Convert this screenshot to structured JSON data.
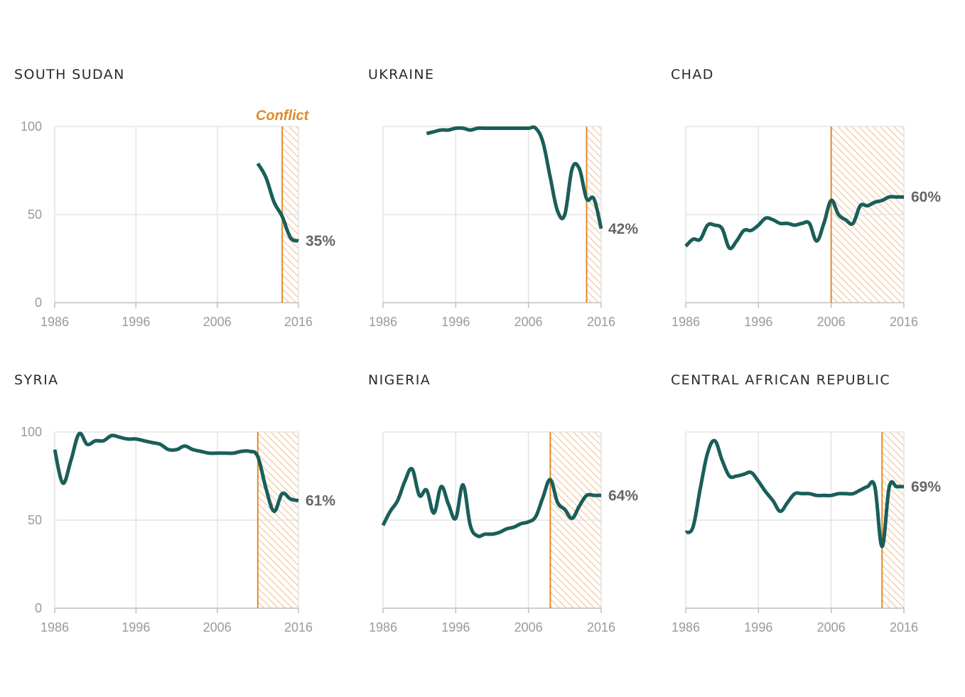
{
  "colors": {
    "line": "#1a5e5a",
    "conflict": "#e08a2c",
    "hatch": "#f2b98a",
    "grid": "#e3e3e3",
    "tick": "#9a9a9a",
    "endlabel": "#666666"
  },
  "conflict_label": "Conflict",
  "chart_data": [
    {
      "type": "line",
      "title": "SOUTH SUDAN",
      "xlim": [
        1986,
        2016
      ],
      "ylim": [
        0,
        100
      ],
      "x_ticks": [
        "1986",
        "1996",
        "2006",
        "2016"
      ],
      "y_ticks": [
        "100",
        "50",
        "0"
      ],
      "conflict_start": 2014,
      "end_label": "35%",
      "series": [
        {
          "x": [
            2011,
            2012,
            2013,
            2014,
            2015,
            2016
          ],
          "y": [
            79,
            71,
            57,
            49,
            37,
            35
          ]
        }
      ]
    },
    {
      "type": "line",
      "title": "UKRAINE",
      "xlim": [
        1986,
        2016
      ],
      "ylim": [
        0,
        100
      ],
      "x_ticks": [
        "1986",
        "1996",
        "2006",
        "2016"
      ],
      "conflict_start": 2014,
      "end_label": "42%",
      "series": [
        {
          "x": [
            1992,
            1993,
            1994,
            1995,
            1996,
            1997,
            1998,
            1999,
            2000,
            2001,
            2002,
            2003,
            2004,
            2005,
            2006,
            2007,
            2008,
            2009,
            2010,
            2011,
            2012,
            2013,
            2014,
            2015,
            2016
          ],
          "y": [
            96,
            97,
            98,
            98,
            99,
            99,
            98,
            99,
            99,
            99,
            99,
            99,
            99,
            99,
            99,
            99,
            91,
            71,
            52,
            50,
            76,
            76,
            59,
            59,
            42
          ]
        }
      ]
    },
    {
      "type": "line",
      "title": "CHAD",
      "xlim": [
        1986,
        2016
      ],
      "ylim": [
        0,
        100
      ],
      "x_ticks": [
        "1986",
        "1996",
        "2006",
        "2016"
      ],
      "conflict_start": 2006,
      "end_label": "60%",
      "series": [
        {
          "x": [
            1986,
            1987,
            1988,
            1989,
            1990,
            1991,
            1992,
            1993,
            1994,
            1995,
            1996,
            1997,
            1998,
            1999,
            2000,
            2001,
            2002,
            2003,
            2004,
            2005,
            2006,
            2007,
            2008,
            2009,
            2010,
            2011,
            2012,
            2013,
            2014,
            2015,
            2016
          ],
          "y": [
            32,
            36,
            36,
            44,
            44,
            42,
            31,
            35,
            41,
            41,
            44,
            48,
            47,
            45,
            45,
            44,
            45,
            45,
            35,
            45,
            58,
            50,
            47,
            45,
            55,
            55,
            57,
            58,
            60,
            60,
            60
          ]
        }
      ]
    },
    {
      "type": "line",
      "title": "SYRIA",
      "xlim": [
        1986,
        2016
      ],
      "ylim": [
        0,
        100
      ],
      "x_ticks": [
        "1986",
        "1996",
        "2006",
        "2016"
      ],
      "y_ticks": [
        "100",
        "50",
        "0"
      ],
      "conflict_start": 2011,
      "end_label": "61%",
      "series": [
        {
          "x": [
            1986,
            1987,
            1988,
            1989,
            1990,
            1991,
            1992,
            1993,
            1994,
            1995,
            1996,
            1997,
            1998,
            1999,
            2000,
            2001,
            2002,
            2003,
            2004,
            2005,
            2006,
            2007,
            2008,
            2009,
            2010,
            2011,
            2012,
            2013,
            2014,
            2015,
            2016
          ],
          "y": [
            90,
            71,
            84,
            99,
            93,
            95,
            95,
            98,
            97,
            96,
            96,
            95,
            94,
            93,
            90,
            90,
            92,
            90,
            89,
            88,
            88,
            88,
            88,
            89,
            89,
            86,
            68,
            55,
            65,
            62,
            61
          ]
        }
      ]
    },
    {
      "type": "line",
      "title": "NIGERIA",
      "xlim": [
        1986,
        2016
      ],
      "ylim": [
        0,
        100
      ],
      "x_ticks": [
        "1986",
        "1996",
        "2006",
        "2016"
      ],
      "conflict_start": 2009,
      "end_label": "64%",
      "series": [
        {
          "x": [
            1986,
            1987,
            1988,
            1989,
            1990,
            1991,
            1992,
            1993,
            1994,
            1995,
            1996,
            1997,
            1998,
            1999,
            2000,
            2001,
            2002,
            2003,
            2004,
            2005,
            2006,
            2007,
            2008,
            2009,
            2010,
            2011,
            2012,
            2013,
            2014,
            2015,
            2016
          ],
          "y": [
            47,
            55,
            61,
            72,
            79,
            64,
            67,
            54,
            69,
            59,
            51,
            70,
            47,
            41,
            42,
            42,
            43,
            45,
            46,
            48,
            49,
            52,
            63,
            73,
            60,
            56,
            51,
            58,
            64,
            64,
            64
          ]
        }
      ]
    },
    {
      "type": "line",
      "title": "CENTRAL AFRICAN REPUBLIC",
      "xlim": [
        1986,
        2016
      ],
      "ylim": [
        0,
        100
      ],
      "x_ticks": [
        "1986",
        "1996",
        "2006",
        "2016"
      ],
      "conflict_start": 2013,
      "end_label": "69%",
      "series": [
        {
          "x": [
            1986,
            1987,
            1988,
            1989,
            1990,
            1991,
            1992,
            1993,
            1994,
            1995,
            1996,
            1997,
            1998,
            1999,
            2000,
            2001,
            2002,
            2003,
            2004,
            2005,
            2006,
            2007,
            2008,
            2009,
            2010,
            2011,
            2012,
            2013,
            2014,
            2015,
            2016
          ],
          "y": [
            43,
            46,
            68,
            88,
            95,
            84,
            75,
            75,
            76,
            77,
            72,
            66,
            61,
            55,
            60,
            65,
            65,
            65,
            64,
            64,
            64,
            65,
            65,
            65,
            67,
            69,
            69,
            35,
            69,
            69,
            69
          ]
        }
      ]
    }
  ]
}
